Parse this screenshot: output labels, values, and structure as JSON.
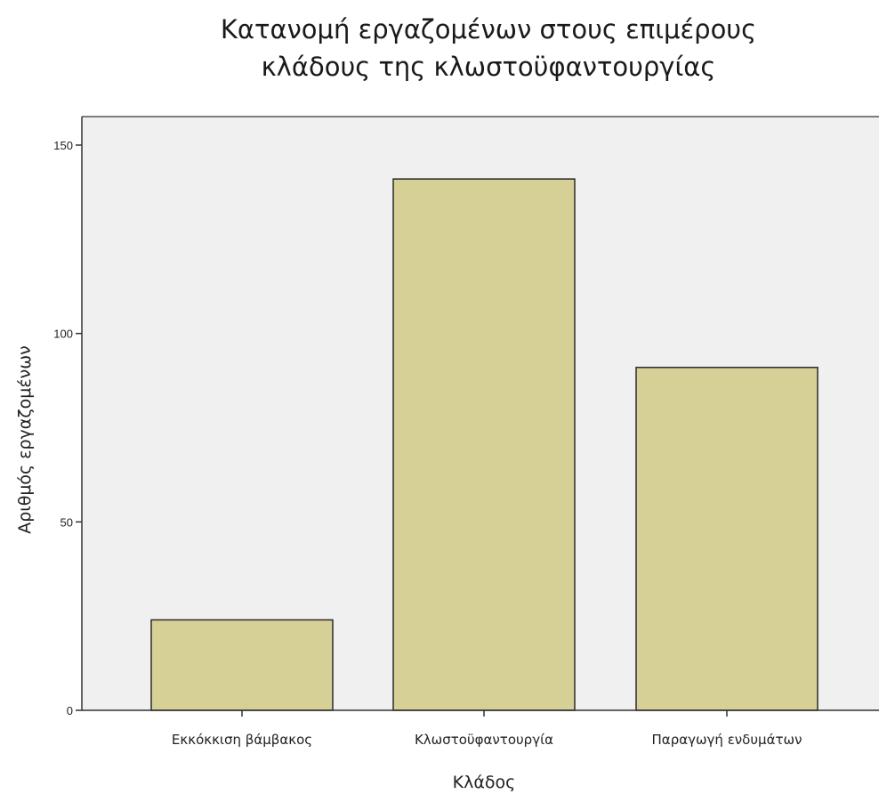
{
  "chart_data": {
    "type": "bar",
    "title_lines": [
      "Κατανομή εργαζομένων στους επιμέρους",
      "κλάδους της κλωστοϋφαντουργίας"
    ],
    "xlabel": "Κλάδος",
    "ylabel": "Αριθμός εργαζομένων",
    "categories": [
      "Εκκόκκιση βάμβακος",
      "Κλωστοϋφαντουργία",
      "Παραγωγή ενδυμάτων"
    ],
    "values": [
      24,
      141,
      91
    ],
    "ylim": [
      0,
      150
    ],
    "yticks": [
      "0",
      "50",
      "100",
      "150"
    ],
    "grid": false,
    "legend": "none"
  },
  "colors": {
    "bar_fill": "#d6cf96",
    "bar_stroke": "#2b2b2b",
    "plot_background": "#f0f0f0",
    "axis": "#333333"
  }
}
